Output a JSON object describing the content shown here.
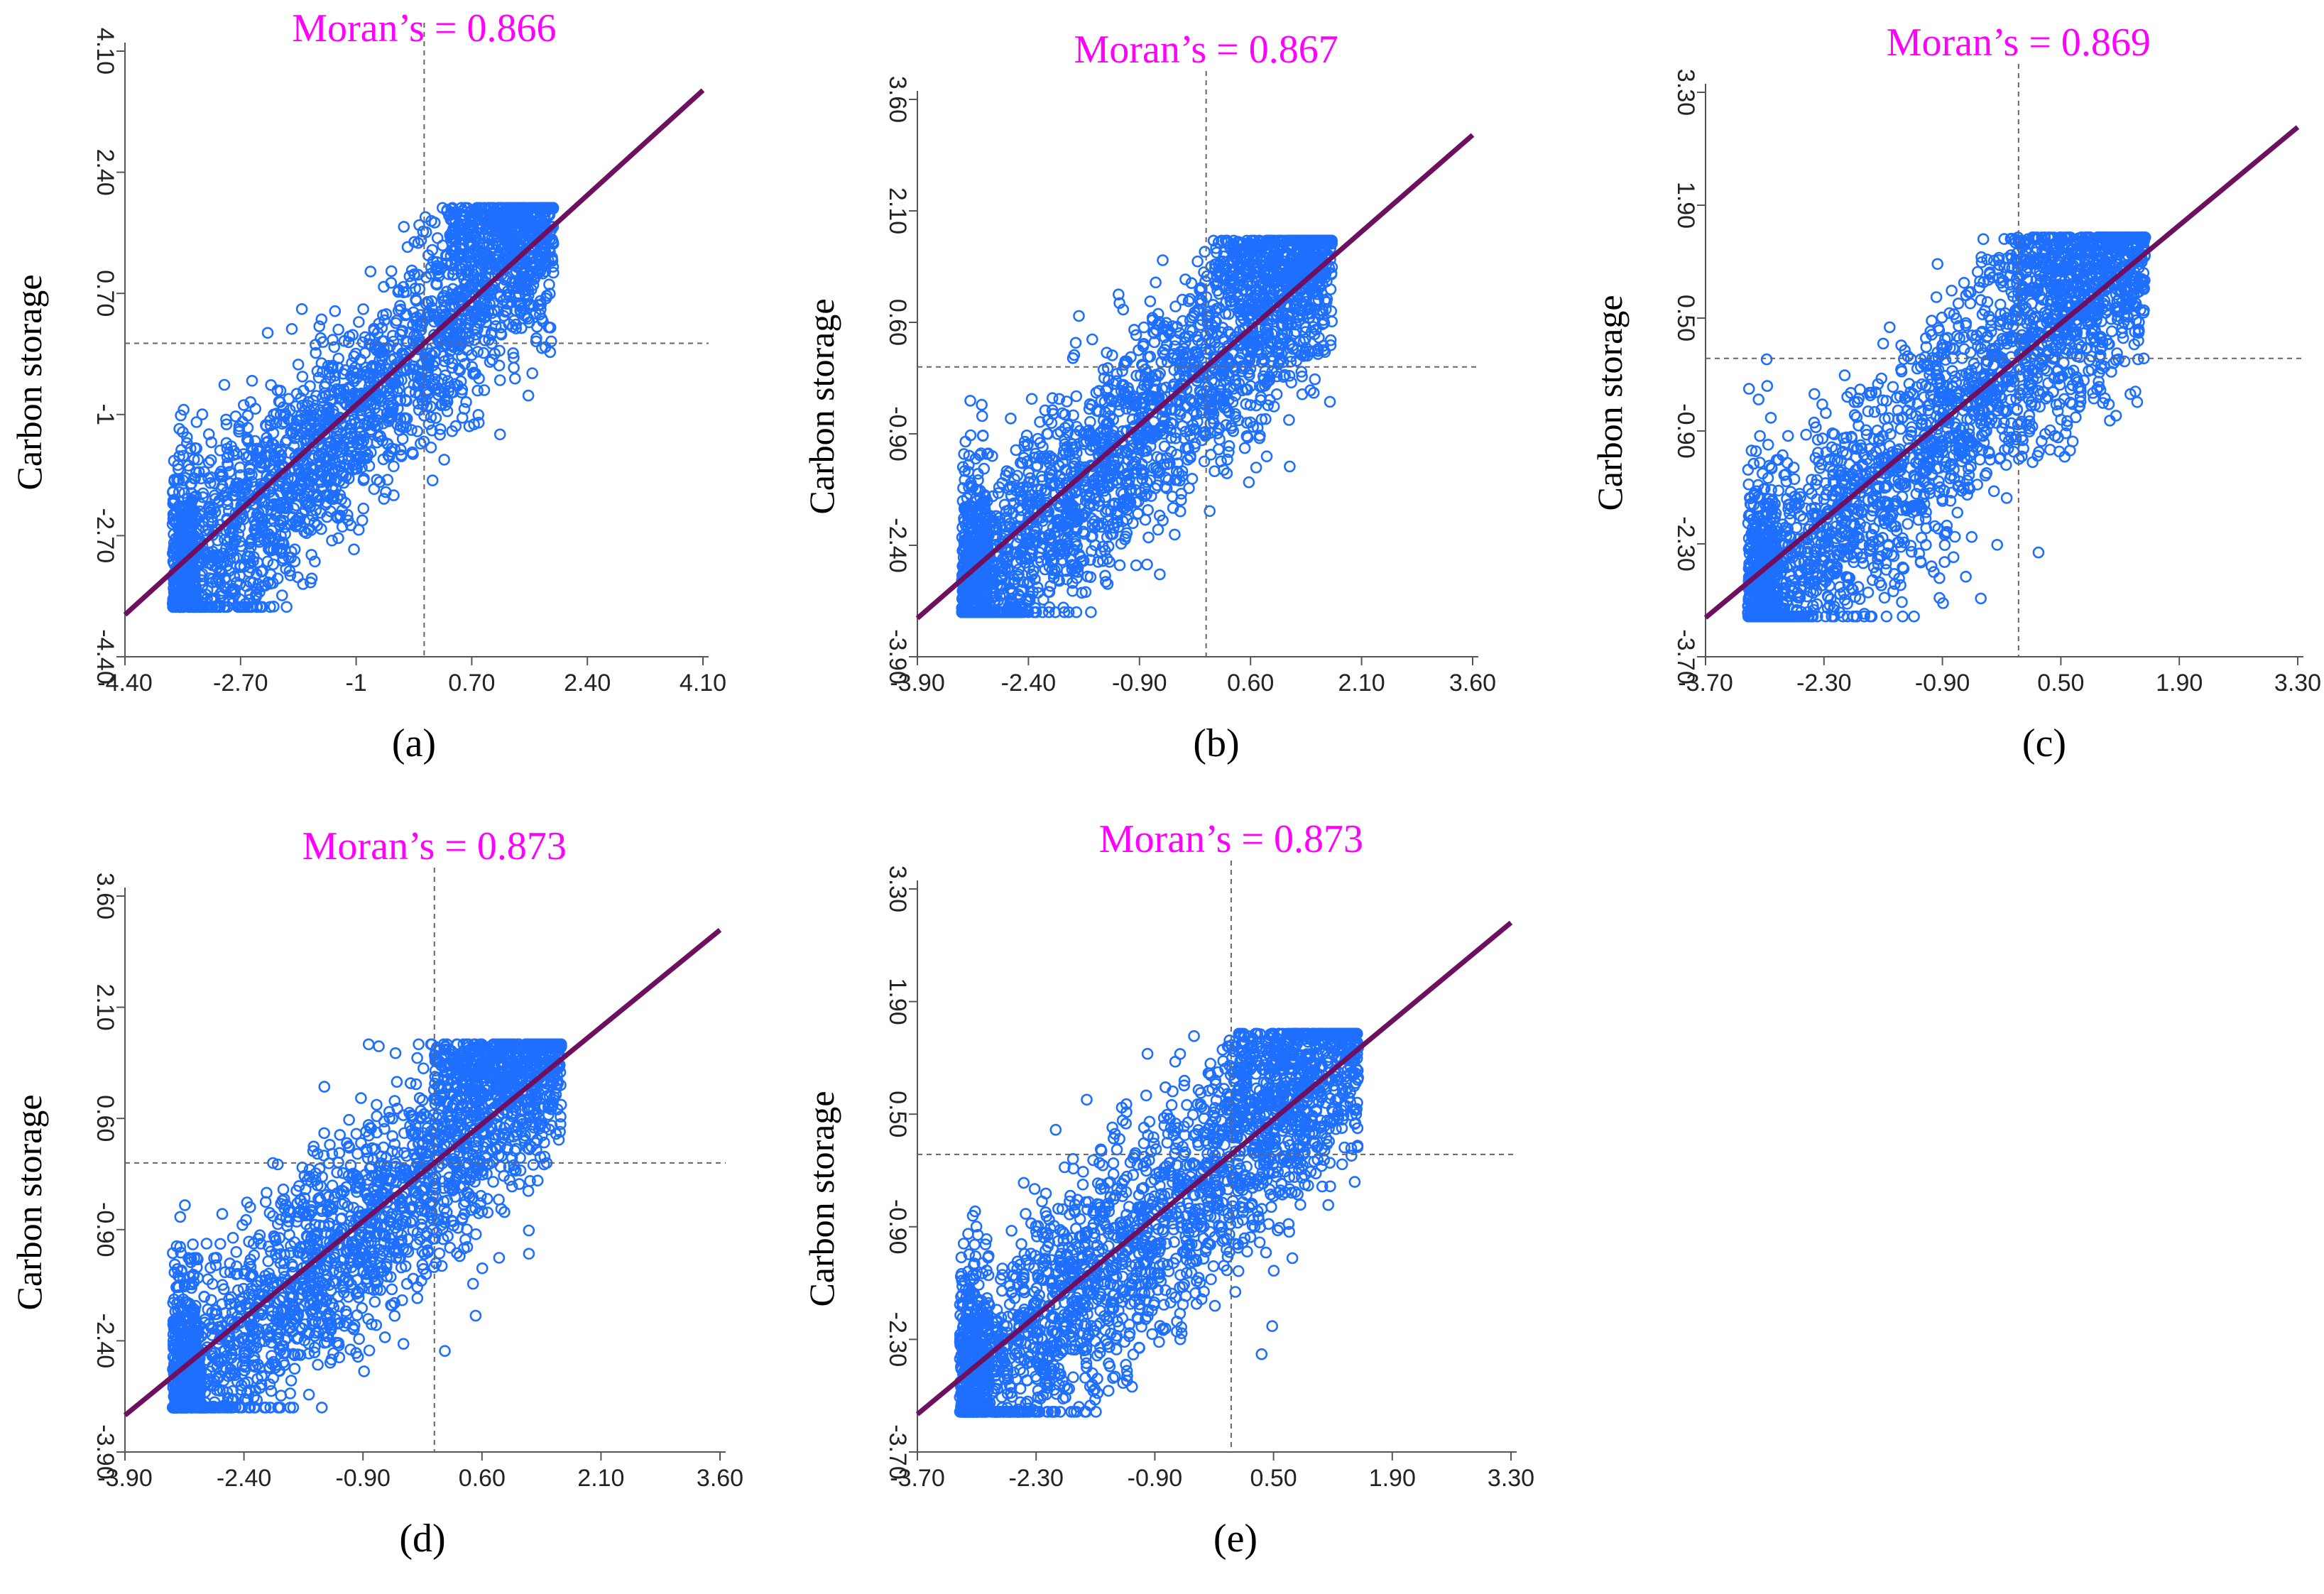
{
  "chart_data": [
    {
      "type": "scatter",
      "panel_label": "(a)",
      "title": "Moran’s = 0.866",
      "xlabel": "",
      "ylabel": "Carbon storage",
      "xlim": [
        -4.4,
        4.1
      ],
      "ylim": [
        -4.4,
        4.1
      ],
      "xticks": [
        "-4.40",
        "-2.70",
        "-1",
        "0.70",
        "2.40",
        "4.10"
      ],
      "yticks": [
        "-4.40",
        "-2.70",
        "-1",
        "0.70",
        "2.40",
        "4.10"
      ],
      "data_bounds": {
        "x": [
          -3.7,
          1.9
        ],
        "y": [
          -3.7,
          1.9
        ]
      },
      "slope": 0.866,
      "mean_lines": {
        "x": 0,
        "y": 0
      },
      "grid": false,
      "legend": "none",
      "marker_color": "#1f6fff",
      "line_color": "#6e1060"
    },
    {
      "type": "scatter",
      "panel_label": "(b)",
      "title": "Moran’s = 0.867",
      "xlabel": "",
      "ylabel": "Carbon storage",
      "xlim": [
        -3.9,
        3.6
      ],
      "ylim": [
        -3.9,
        3.6
      ],
      "xticks": [
        "-3.90",
        "-2.40",
        "-0.90",
        "0.60",
        "2.10",
        "3.60"
      ],
      "yticks": [
        "-3.90",
        "-2.40",
        "-0.90",
        "0.60",
        "2.10",
        "3.60"
      ],
      "data_bounds": {
        "x": [
          -3.3,
          1.7
        ],
        "y": [
          -3.3,
          1.7
        ]
      },
      "slope": 0.867,
      "mean_lines": {
        "x": 0,
        "y": 0
      },
      "grid": false,
      "legend": "none",
      "marker_color": "#1f6fff",
      "line_color": "#6e1060"
    },
    {
      "type": "scatter",
      "panel_label": "(c)",
      "title": "Moran’s = 0.869",
      "xlabel": "",
      "ylabel": "Carbon storage",
      "xlim": [
        -3.7,
        3.3
      ],
      "ylim": [
        -3.7,
        3.3
      ],
      "xticks": [
        "-3.70",
        "-2.30",
        "-0.90",
        "0.50",
        "1.90",
        "3.30"
      ],
      "yticks": [
        "-3.70",
        "-2.30",
        "-0.90",
        "0.50",
        "1.90",
        "3.30"
      ],
      "data_bounds": {
        "x": [
          -3.2,
          1.5
        ],
        "y": [
          -3.2,
          1.5
        ]
      },
      "slope": 0.869,
      "mean_lines": {
        "x": 0,
        "y": 0
      },
      "grid": false,
      "legend": "none",
      "marker_color": "#1f6fff",
      "line_color": "#6e1060"
    },
    {
      "type": "scatter",
      "panel_label": "(d)",
      "title": "Moran’s = 0.873",
      "xlabel": "",
      "ylabel": "Carbon storage",
      "xlim": [
        -3.9,
        3.6
      ],
      "ylim": [
        -3.9,
        3.6
      ],
      "xticks": [
        "-3.90",
        "-2.40",
        "-0.90",
        "0.60",
        "2.10",
        "3.60"
      ],
      "yticks": [
        "-3.90",
        "-2.40",
        "-0.90",
        "0.60",
        "2.10",
        "3.60"
      ],
      "data_bounds": {
        "x": [
          -3.3,
          1.6
        ],
        "y": [
          -3.3,
          1.6
        ]
      },
      "slope": 0.873,
      "mean_lines": {
        "x": 0,
        "y": 0
      },
      "grid": false,
      "legend": "none",
      "marker_color": "#1f6fff",
      "line_color": "#6e1060"
    },
    {
      "type": "scatter",
      "panel_label": "(e)",
      "title": "Moran’s = 0.873",
      "xlabel": "",
      "ylabel": "Carbon storage",
      "xlim": [
        -3.7,
        3.3
      ],
      "ylim": [
        -3.7,
        3.3
      ],
      "xticks": [
        "-3.70",
        "-2.30",
        "-0.90",
        "0.50",
        "1.90",
        "3.30"
      ],
      "yticks": [
        "-3.70",
        "-2.30",
        "-0.90",
        "0.50",
        "1.90",
        "3.30"
      ],
      "data_bounds": {
        "x": [
          -3.2,
          1.5
        ],
        "y": [
          -3.2,
          1.5
        ]
      },
      "slope": 0.873,
      "mean_lines": {
        "x": 0,
        "y": 0
      },
      "grid": false,
      "legend": "none",
      "marker_color": "#1f6fff",
      "line_color": "#6e1060"
    }
  ]
}
